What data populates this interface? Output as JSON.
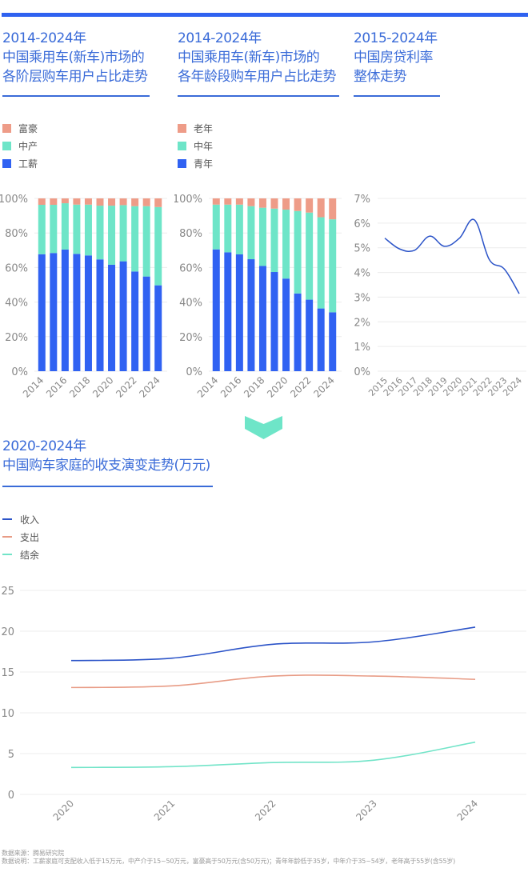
{
  "colors": {
    "accent": "#2f62f0",
    "title": "#3a6bd8",
    "blue": "#3062f2",
    "teal": "#6ee5c8",
    "salmon": "#ee9c88",
    "line_income": "#2c54c8",
    "line_expense": "#e89c86",
    "line_surplus": "#72e4c8",
    "grid": "#ececec",
    "axis_text": "#888888"
  },
  "panel1": {
    "title_line1": "2014-2024年",
    "title_line2": "中国乘用车(新车)市场的",
    "title_line3": "各阶层购车用户占比走势",
    "legend": [
      "富豪",
      "中产",
      "工薪"
    ]
  },
  "panel2": {
    "title_line1": "2014-2024年",
    "title_line2": "中国乘用车(新车)市场的",
    "title_line3": "各年龄段购车用户占比走势",
    "legend": [
      "老年",
      "中年",
      "青年"
    ]
  },
  "panel3": {
    "title_line1": "2015-2024年",
    "title_line2": "中国房贷利率",
    "title_line3": "整体走势"
  },
  "panel4": {
    "title_line1": "2020-2024年",
    "title_line2": "中国购车家庭的收支演变走势(万元)",
    "legend": [
      "收入",
      "支出",
      "结余"
    ]
  },
  "arrow_icon": "chevron-down-icon",
  "footnotes": {
    "source": "数据来源：腾易研究院",
    "note": "数据说明：工薪家庭可支配收入低于15万元，中产介于15~50万元，富豪高于50万元(含50万元)；青年年龄低于35岁，中年介于35~54岁，老年高于55岁(含55岁)"
  },
  "chart_data": [
    {
      "type": "bar",
      "stacked": true,
      "title": "2014-2024年 中国乘用车(新车)市场的各阶层购车用户占比走势",
      "categories": [
        "2014",
        "2015",
        "2016",
        "2017",
        "2018",
        "2019",
        "2020",
        "2021",
        "2022",
        "2023",
        "2024"
      ],
      "tick_labels": [
        "2014",
        "2016",
        "2018",
        "2020",
        "2022",
        "2024"
      ],
      "yticks": [
        "0%",
        "20%",
        "40%",
        "60%",
        "80%",
        "100%"
      ],
      "ylim": [
        0,
        100
      ],
      "legend_position": "top-left",
      "grid": true,
      "series": [
        {
          "name": "工薪",
          "values": [
            67.7,
            68.4,
            70.4,
            67.9,
            67.0,
            64.7,
            61.6,
            63.6,
            57.7,
            54.8,
            49.7
          ]
        },
        {
          "name": "中产",
          "values": [
            28.6,
            27.9,
            26.8,
            28.5,
            29.4,
            31.1,
            34.2,
            32.5,
            37.8,
            40.7,
            45.3
          ]
        },
        {
          "name": "富豪",
          "values": [
            3.7,
            3.7,
            2.8,
            3.6,
            3.6,
            4.2,
            4.2,
            3.9,
            4.5,
            4.5,
            5.0
          ]
        }
      ]
    },
    {
      "type": "bar",
      "stacked": true,
      "title": "2014-2024年 中国乘用车(新车)市场的各年龄段购车用户占比走势",
      "categories": [
        "2014",
        "2015",
        "2016",
        "2017",
        "2018",
        "2019",
        "2020",
        "2021",
        "2022",
        "2023",
        "2024"
      ],
      "tick_labels": [
        "2014",
        "2016",
        "2018",
        "2020",
        "2022",
        "2024"
      ],
      "yticks": [
        "0%",
        "20%",
        "40%",
        "60%",
        "80%",
        "100%"
      ],
      "ylim": [
        0,
        100
      ],
      "legend_position": "top-left",
      "grid": true,
      "series": [
        {
          "name": "青年",
          "values": [
            70.5,
            68.8,
            67.6,
            64.8,
            60.9,
            57.4,
            53.6,
            45.0,
            41.4,
            36.3,
            34.1
          ]
        },
        {
          "name": "中年",
          "values": [
            25.9,
            27.6,
            28.8,
            30.7,
            33.7,
            36.7,
            39.9,
            47.7,
            50.4,
            52.8,
            53.8
          ]
        },
        {
          "name": "老年",
          "values": [
            3.6,
            3.6,
            3.6,
            4.5,
            5.4,
            5.9,
            6.5,
            7.3,
            8.2,
            10.9,
            12.1
          ]
        }
      ]
    },
    {
      "type": "line",
      "title": "2015-2024年 中国房贷利率整体走势",
      "x": [
        "2015",
        "2016",
        "2017",
        "2018",
        "2019",
        "2020",
        "2021",
        "2022",
        "2023",
        "2024"
      ],
      "yticks": [
        "0%",
        "1%",
        "2%",
        "3%",
        "4%",
        "5%",
        "6%",
        "7%"
      ],
      "ylim": [
        0,
        7
      ],
      "grid": true,
      "series": [
        {
          "name": "房贷利率",
          "values": [
            5.39,
            4.95,
            4.9,
            5.47,
            5.06,
            5.39,
            6.13,
            4.52,
            4.14,
            3.14
          ]
        }
      ]
    },
    {
      "type": "line",
      "title": "2020-2024年 中国购车家庭的收支演变走势(万元)",
      "x": [
        "2020",
        "2021",
        "2022",
        "2023",
        "2024"
      ],
      "yticks": [
        "0",
        "5",
        "10",
        "15",
        "20",
        "25"
      ],
      "ylim": [
        0,
        25
      ],
      "ylabel": "万元",
      "legend_position": "top-left",
      "grid": true,
      "series": [
        {
          "name": "收入",
          "values": [
            16.4,
            16.7,
            18.4,
            18.7,
            20.5
          ]
        },
        {
          "name": "支出",
          "values": [
            13.1,
            13.3,
            14.5,
            14.5,
            14.1
          ]
        },
        {
          "name": "结余",
          "values": [
            3.3,
            3.4,
            3.9,
            4.2,
            6.4
          ]
        }
      ]
    }
  ]
}
